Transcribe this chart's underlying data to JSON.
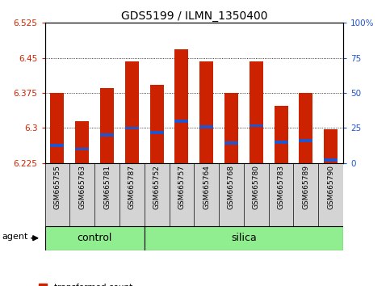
{
  "title": "GDS5199 / ILMN_1350400",
  "samples": [
    "GSM665755",
    "GSM665763",
    "GSM665781",
    "GSM665787",
    "GSM665752",
    "GSM665757",
    "GSM665764",
    "GSM665768",
    "GSM665780",
    "GSM665783",
    "GSM665789",
    "GSM665790"
  ],
  "bar_values": [
    6.375,
    6.315,
    6.385,
    6.443,
    6.393,
    6.468,
    6.443,
    6.375,
    6.443,
    6.348,
    6.375,
    6.298
  ],
  "percentile_values": [
    6.263,
    6.255,
    6.285,
    6.3,
    6.29,
    6.315,
    6.303,
    6.268,
    6.305,
    6.27,
    6.273,
    6.232
  ],
  "ymin": 6.225,
  "ymax": 6.525,
  "yticks": [
    6.225,
    6.3,
    6.375,
    6.45,
    6.525
  ],
  "ytick_labels": [
    "6.225",
    "6.3",
    "6.375",
    "6.45",
    "6.525"
  ],
  "y2ticks": [
    0,
    25,
    50,
    75,
    100
  ],
  "y2tick_labels": [
    "0",
    "25",
    "50",
    "75",
    "100%"
  ],
  "bar_color": "#cc2200",
  "blue_color": "#2255cc",
  "bar_width": 0.55,
  "bg_color": "#ffffff",
  "label_bg": "#d4d4d4",
  "group_green": "#90ee90",
  "group_label_fontsize": 9,
  "tick_fontsize": 7.5,
  "title_fontsize": 10,
  "legend_fontsize": 7.5,
  "sample_fontsize": 6.5,
  "agent_label": "agent",
  "group_names": [
    "control",
    "silica"
  ],
  "n_control": 4,
  "n_silica": 8
}
